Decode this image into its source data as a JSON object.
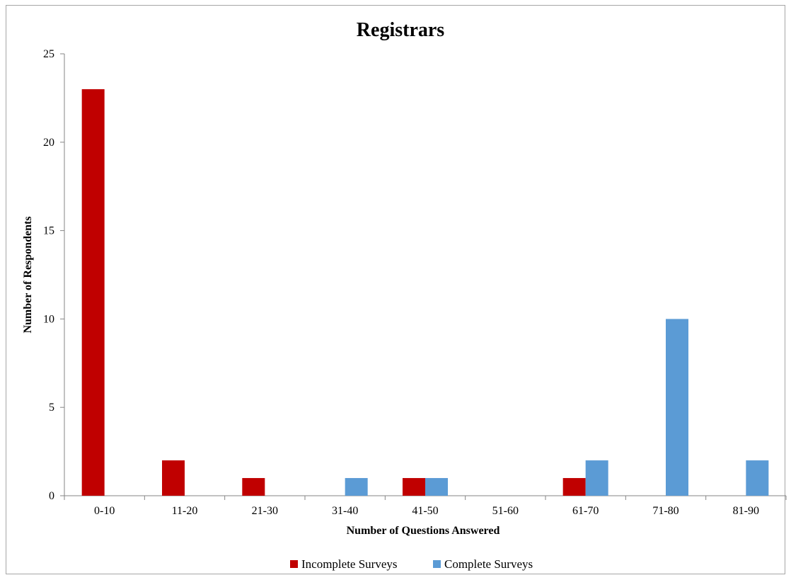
{
  "chart_data": {
    "type": "bar",
    "title": "Registrars",
    "xlabel": "Number of Questions Answered",
    "ylabel": "Number of Respondents",
    "categories": [
      "0-10",
      "11-20",
      "21-30",
      "31-40",
      "41-50",
      "51-60",
      "61-70",
      "71-80",
      "81-90"
    ],
    "series": [
      {
        "name": "Incomplete Surveys",
        "color": "#c00000",
        "values": [
          23,
          2,
          1,
          0,
          1,
          0,
          1,
          0,
          0
        ]
      },
      {
        "name": "Complete Surveys",
        "color": "#5b9bd5",
        "values": [
          0,
          0,
          0,
          1,
          1,
          0,
          2,
          10,
          2
        ]
      }
    ],
    "ylim": [
      0,
      25
    ],
    "yticks": [
      0,
      5,
      10,
      15,
      20,
      25
    ],
    "grid": false,
    "legend_position": "bottom"
  }
}
